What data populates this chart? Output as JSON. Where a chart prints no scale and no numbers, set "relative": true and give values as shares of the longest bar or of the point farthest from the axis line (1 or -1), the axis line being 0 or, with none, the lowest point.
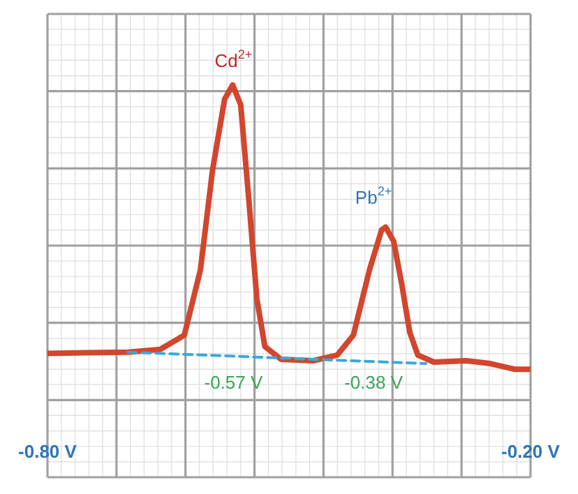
{
  "chart_data": {
    "type": "line",
    "relative": true,
    "grid": true,
    "marker": "none",
    "xlim": [
      -0.8,
      -0.2
    ],
    "xticks": [
      {
        "value": -0.8,
        "label": "-0.80 V"
      },
      {
        "value": -0.2,
        "label": "-0.20 V"
      }
    ],
    "series": [
      {
        "color": "#d2462d",
        "line_style": "solid",
        "x": [
          -0.8,
          -0.75,
          -0.7,
          -0.66,
          -0.63,
          -0.61,
          -0.595,
          -0.58,
          -0.57,
          -0.56,
          -0.55,
          -0.54,
          -0.53,
          -0.51,
          -0.47,
          -0.44,
          -0.42,
          -0.4,
          -0.385,
          -0.38,
          -0.37,
          -0.36,
          -0.35,
          -0.34,
          -0.32,
          -0.28,
          -0.25,
          -0.22,
          -0.2
        ],
        "values": [
          0.056,
          0.058,
          0.06,
          0.07,
          0.12,
          0.35,
          0.7,
          0.95,
          1.0,
          0.93,
          0.6,
          0.25,
          0.08,
          0.035,
          0.03,
          0.05,
          0.12,
          0.35,
          0.49,
          0.5,
          0.45,
          0.3,
          0.13,
          0.05,
          0.025,
          0.03,
          0.02,
          0.0,
          0.0
        ]
      },
      {
        "color": "#3aa8d8",
        "line_style": "dashed",
        "x": [
          -0.7,
          -0.33
        ],
        "values": [
          0.06,
          0.02
        ]
      }
    ],
    "annotations": [
      "Cd$^{2+}$",
      "Pb$^{2+}$",
      "-0.57 V",
      "-0.38 V"
    ]
  }
}
